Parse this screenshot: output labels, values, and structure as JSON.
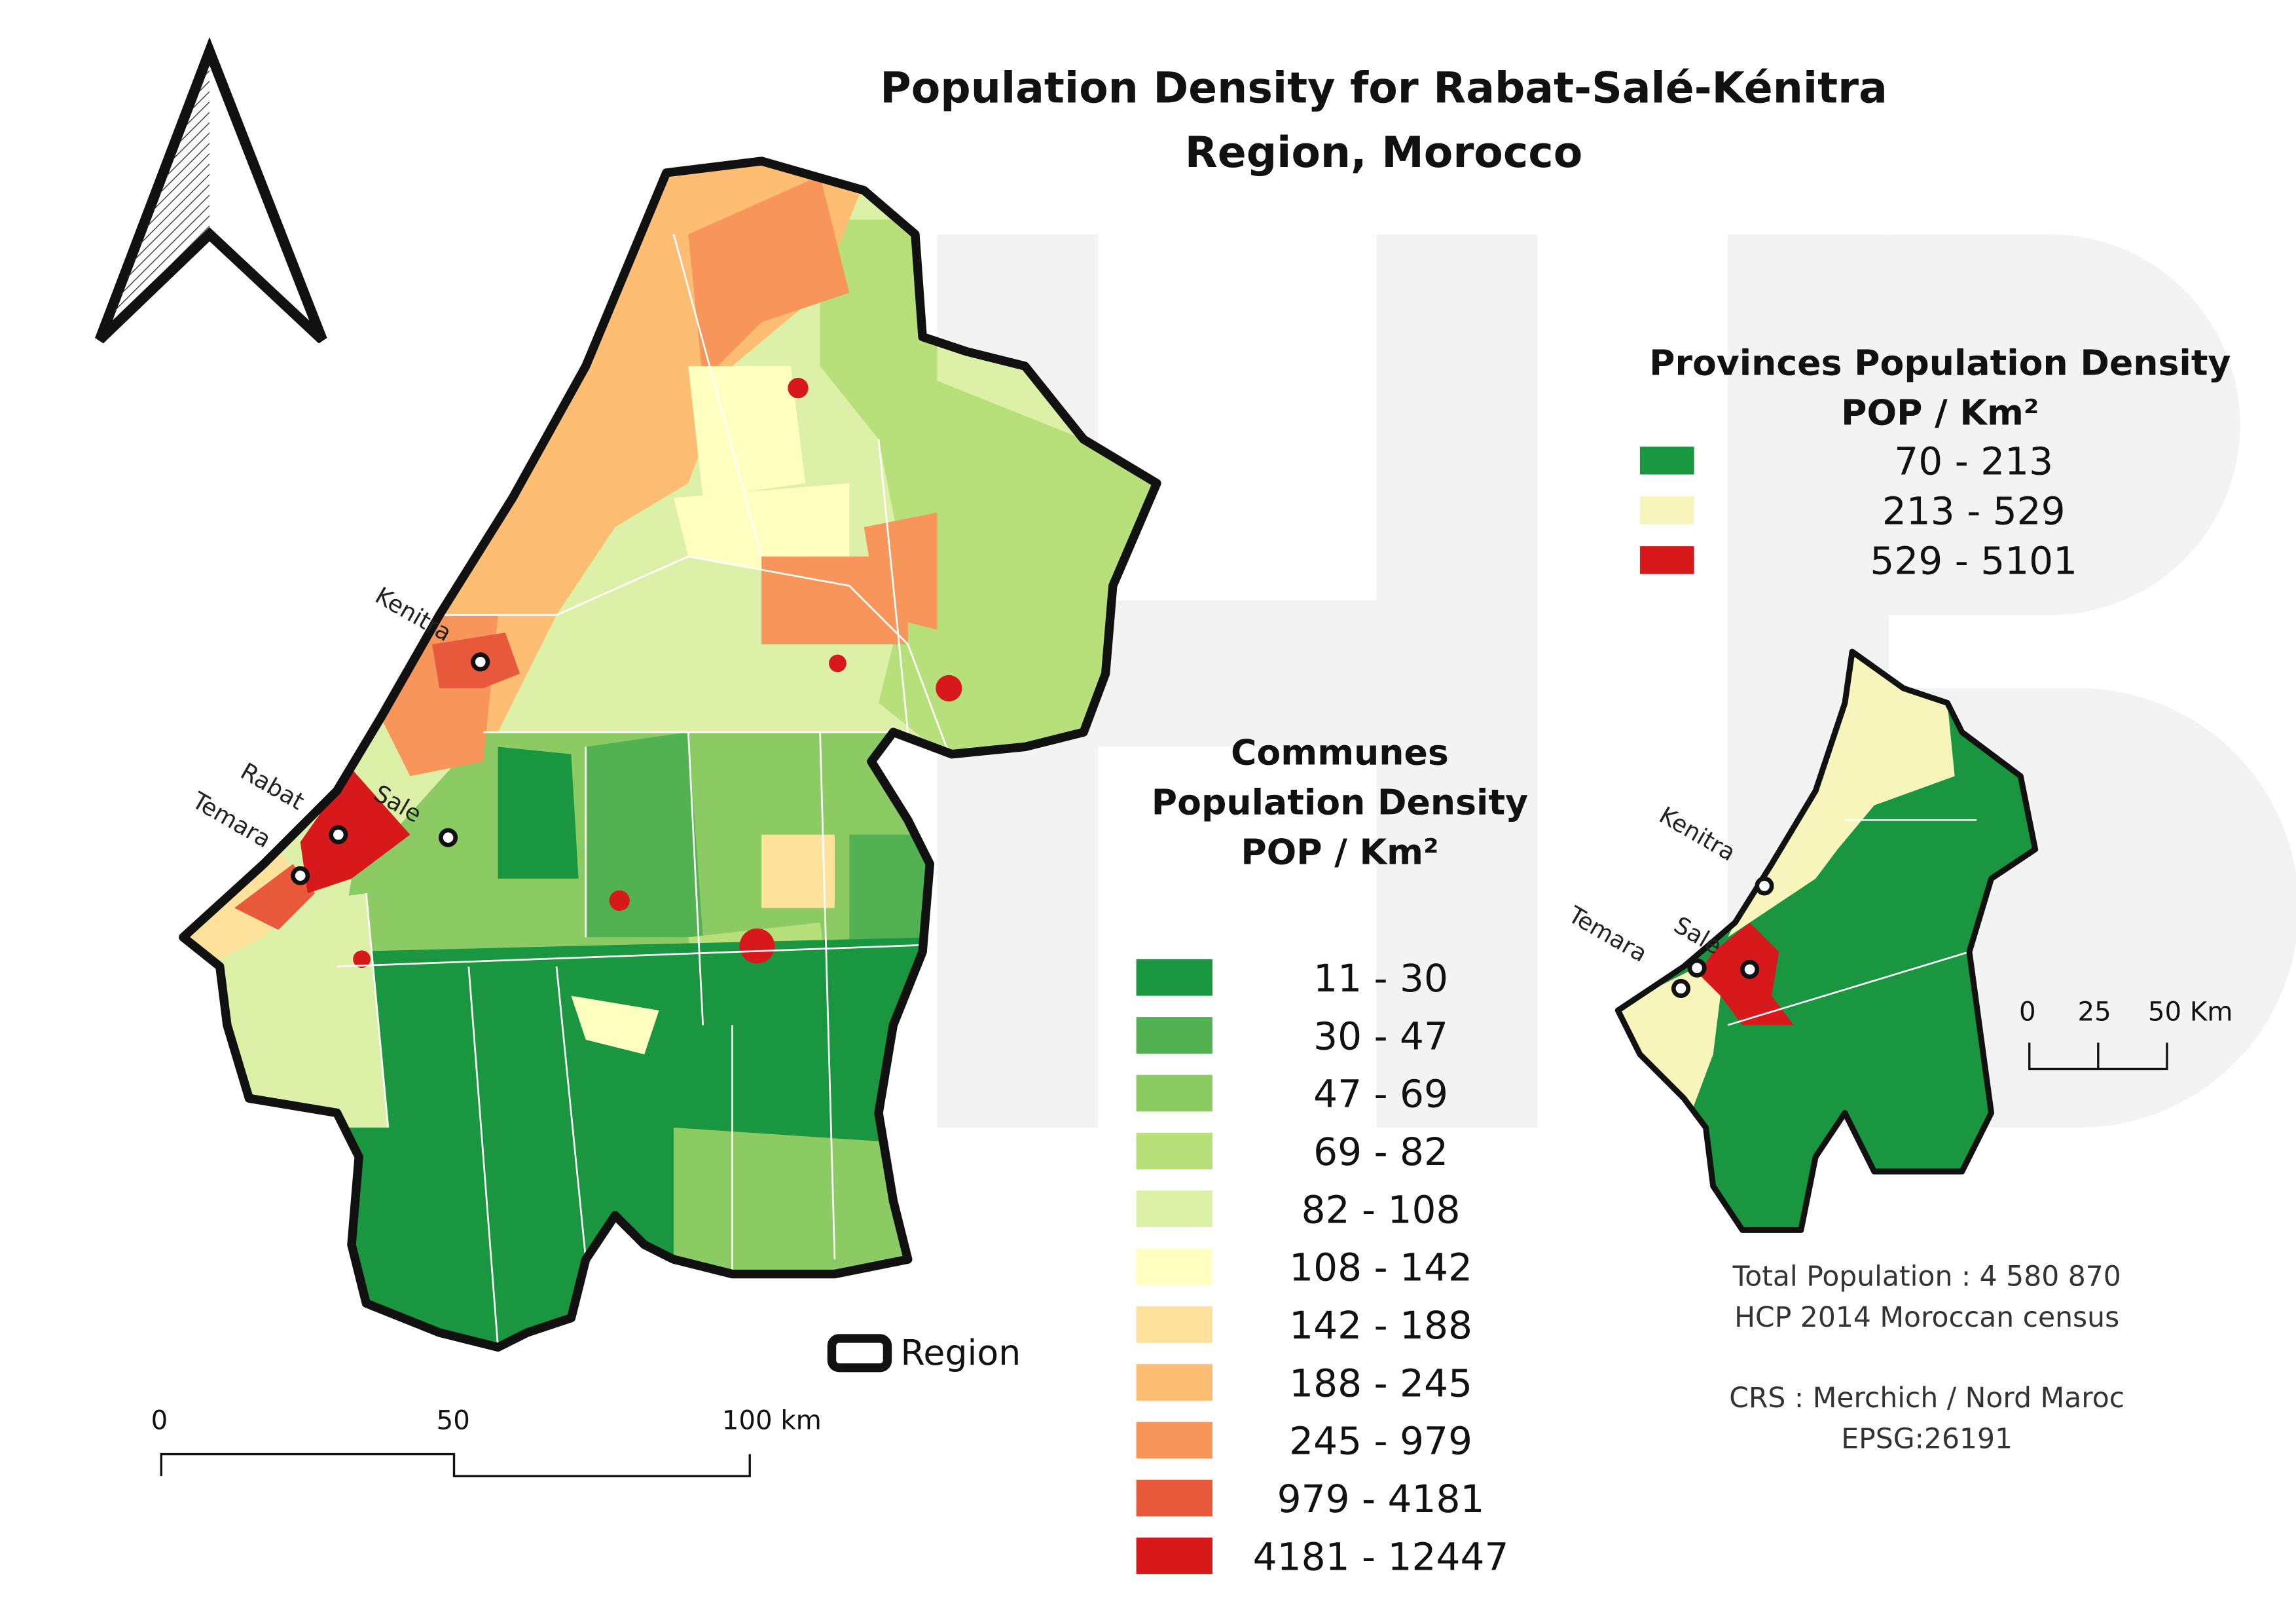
{
  "title": [
    "Population Density for Rabat-Salé-Kénitra",
    "Region, Morocco"
  ],
  "communes_legend": {
    "title": [
      "Communes",
      "Population Density",
      "POP / Km²"
    ],
    "items": [
      {
        "label": "11 - 30",
        "color": "#1a9641"
      },
      {
        "label": "30 - 47",
        "color": "#52b151"
      },
      {
        "label": "47 - 69",
        "color": "#8ccb64"
      },
      {
        "label": "69 - 82",
        "color": "#b8e07a"
      },
      {
        "label": "82 - 108",
        "color": "#dcf0a8"
      },
      {
        "label": "108 - 142",
        "color": "#ffffc0"
      },
      {
        "label": "142 - 188",
        "color": "#fee19a"
      },
      {
        "label": "188 - 245",
        "color": "#fdbe74"
      },
      {
        "label": "245 - 979",
        "color": "#f7955a"
      },
      {
        "label": "979 - 4181",
        "color": "#e8593b"
      },
      {
        "label": "4181 - 12447",
        "color": "#d7191c"
      }
    ]
  },
  "provinces_legend": {
    "title": [
      "Provinces Population Density",
      "POP / Km²"
    ],
    "items": [
      {
        "label": "70 - 213",
        "color": "#1a9641"
      },
      {
        "label": "213 - 529",
        "color": "#f7f5bc"
      },
      {
        "label": "529 - 5101",
        "color": "#d7191c"
      }
    ]
  },
  "region_legend": "Region",
  "main_map": {
    "cities": [
      "Kenitra",
      "Rabat",
      "Sale",
      "Temara"
    ],
    "scale_bar": [
      "0",
      "50",
      "100 km"
    ]
  },
  "inset_map": {
    "cities": [
      "Kenitra",
      "Sale",
      "Temara"
    ],
    "scale_bar": [
      "0",
      "25",
      "50 Km"
    ]
  },
  "notes": [
    "Total Population : 4 580 870",
    "HCP 2014 Moroccan census",
    "CRS : Merchich / Nord Maroc",
    "EPSG:26191"
  ]
}
